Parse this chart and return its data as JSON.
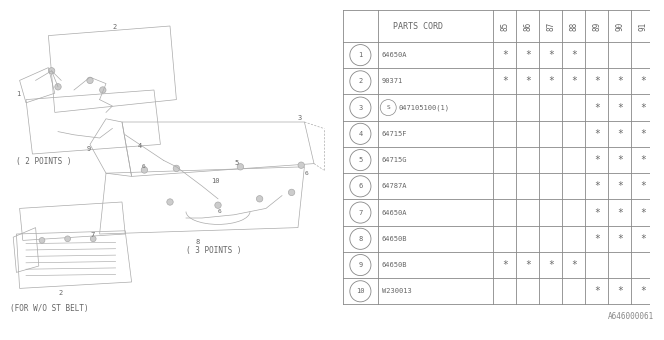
{
  "bg_color": "#ffffff",
  "lc": "#aaaaaa",
  "tc": "#888888",
  "fc": "#666666",
  "year_cols": [
    "85",
    "86",
    "87",
    "88",
    "89",
    "90",
    "91"
  ],
  "rows": [
    {
      "num": 1,
      "part": "64650A",
      "circled_s": false,
      "marks": [
        1,
        1,
        1,
        1,
        0,
        0,
        0
      ]
    },
    {
      "num": 2,
      "part": "90371",
      "circled_s": false,
      "marks": [
        1,
        1,
        1,
        1,
        1,
        1,
        1
      ]
    },
    {
      "num": 3,
      "part": "047105100(1)",
      "circled_s": true,
      "marks": [
        0,
        0,
        0,
        0,
        1,
        1,
        1
      ]
    },
    {
      "num": 4,
      "part": "64715F",
      "circled_s": false,
      "marks": [
        0,
        0,
        0,
        0,
        1,
        1,
        1
      ]
    },
    {
      "num": 5,
      "part": "64715G",
      "circled_s": false,
      "marks": [
        0,
        0,
        0,
        0,
        1,
        1,
        1
      ]
    },
    {
      "num": 6,
      "part": "64787A",
      "circled_s": false,
      "marks": [
        0,
        0,
        0,
        0,
        1,
        1,
        1
      ]
    },
    {
      "num": 7,
      "part": "64650A",
      "circled_s": false,
      "marks": [
        0,
        0,
        0,
        0,
        1,
        1,
        1
      ]
    },
    {
      "num": 8,
      "part": "64650B",
      "circled_s": false,
      "marks": [
        0,
        0,
        0,
        0,
        1,
        1,
        1
      ]
    },
    {
      "num": 9,
      "part": "64650B",
      "circled_s": false,
      "marks": [
        1,
        1,
        1,
        1,
        0,
        0,
        0
      ]
    },
    {
      "num": 10,
      "part": "W230013",
      "circled_s": false,
      "marks": [
        0,
        0,
        0,
        0,
        1,
        1,
        1
      ]
    }
  ],
  "footnote": "A646000061"
}
